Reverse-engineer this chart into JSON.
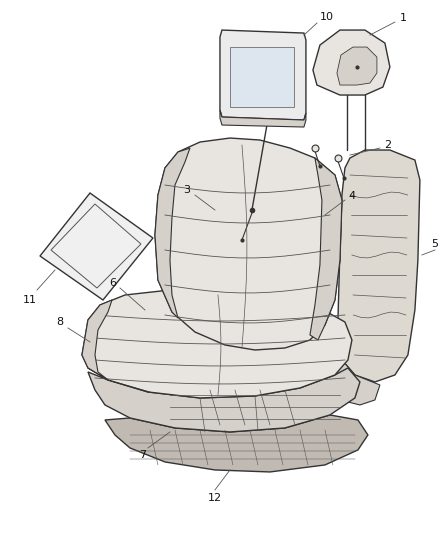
{
  "background_color": "#ffffff",
  "line_color": "#333333",
  "thin_line": "#555555",
  "fill_light": "#e8e5e0",
  "fill_medium": "#d5d0ca",
  "fill_dark": "#c0bab2",
  "fill_frame": "#ddd8d0",
  "figure_width": 4.38,
  "figure_height": 5.33,
  "dpi": 100
}
